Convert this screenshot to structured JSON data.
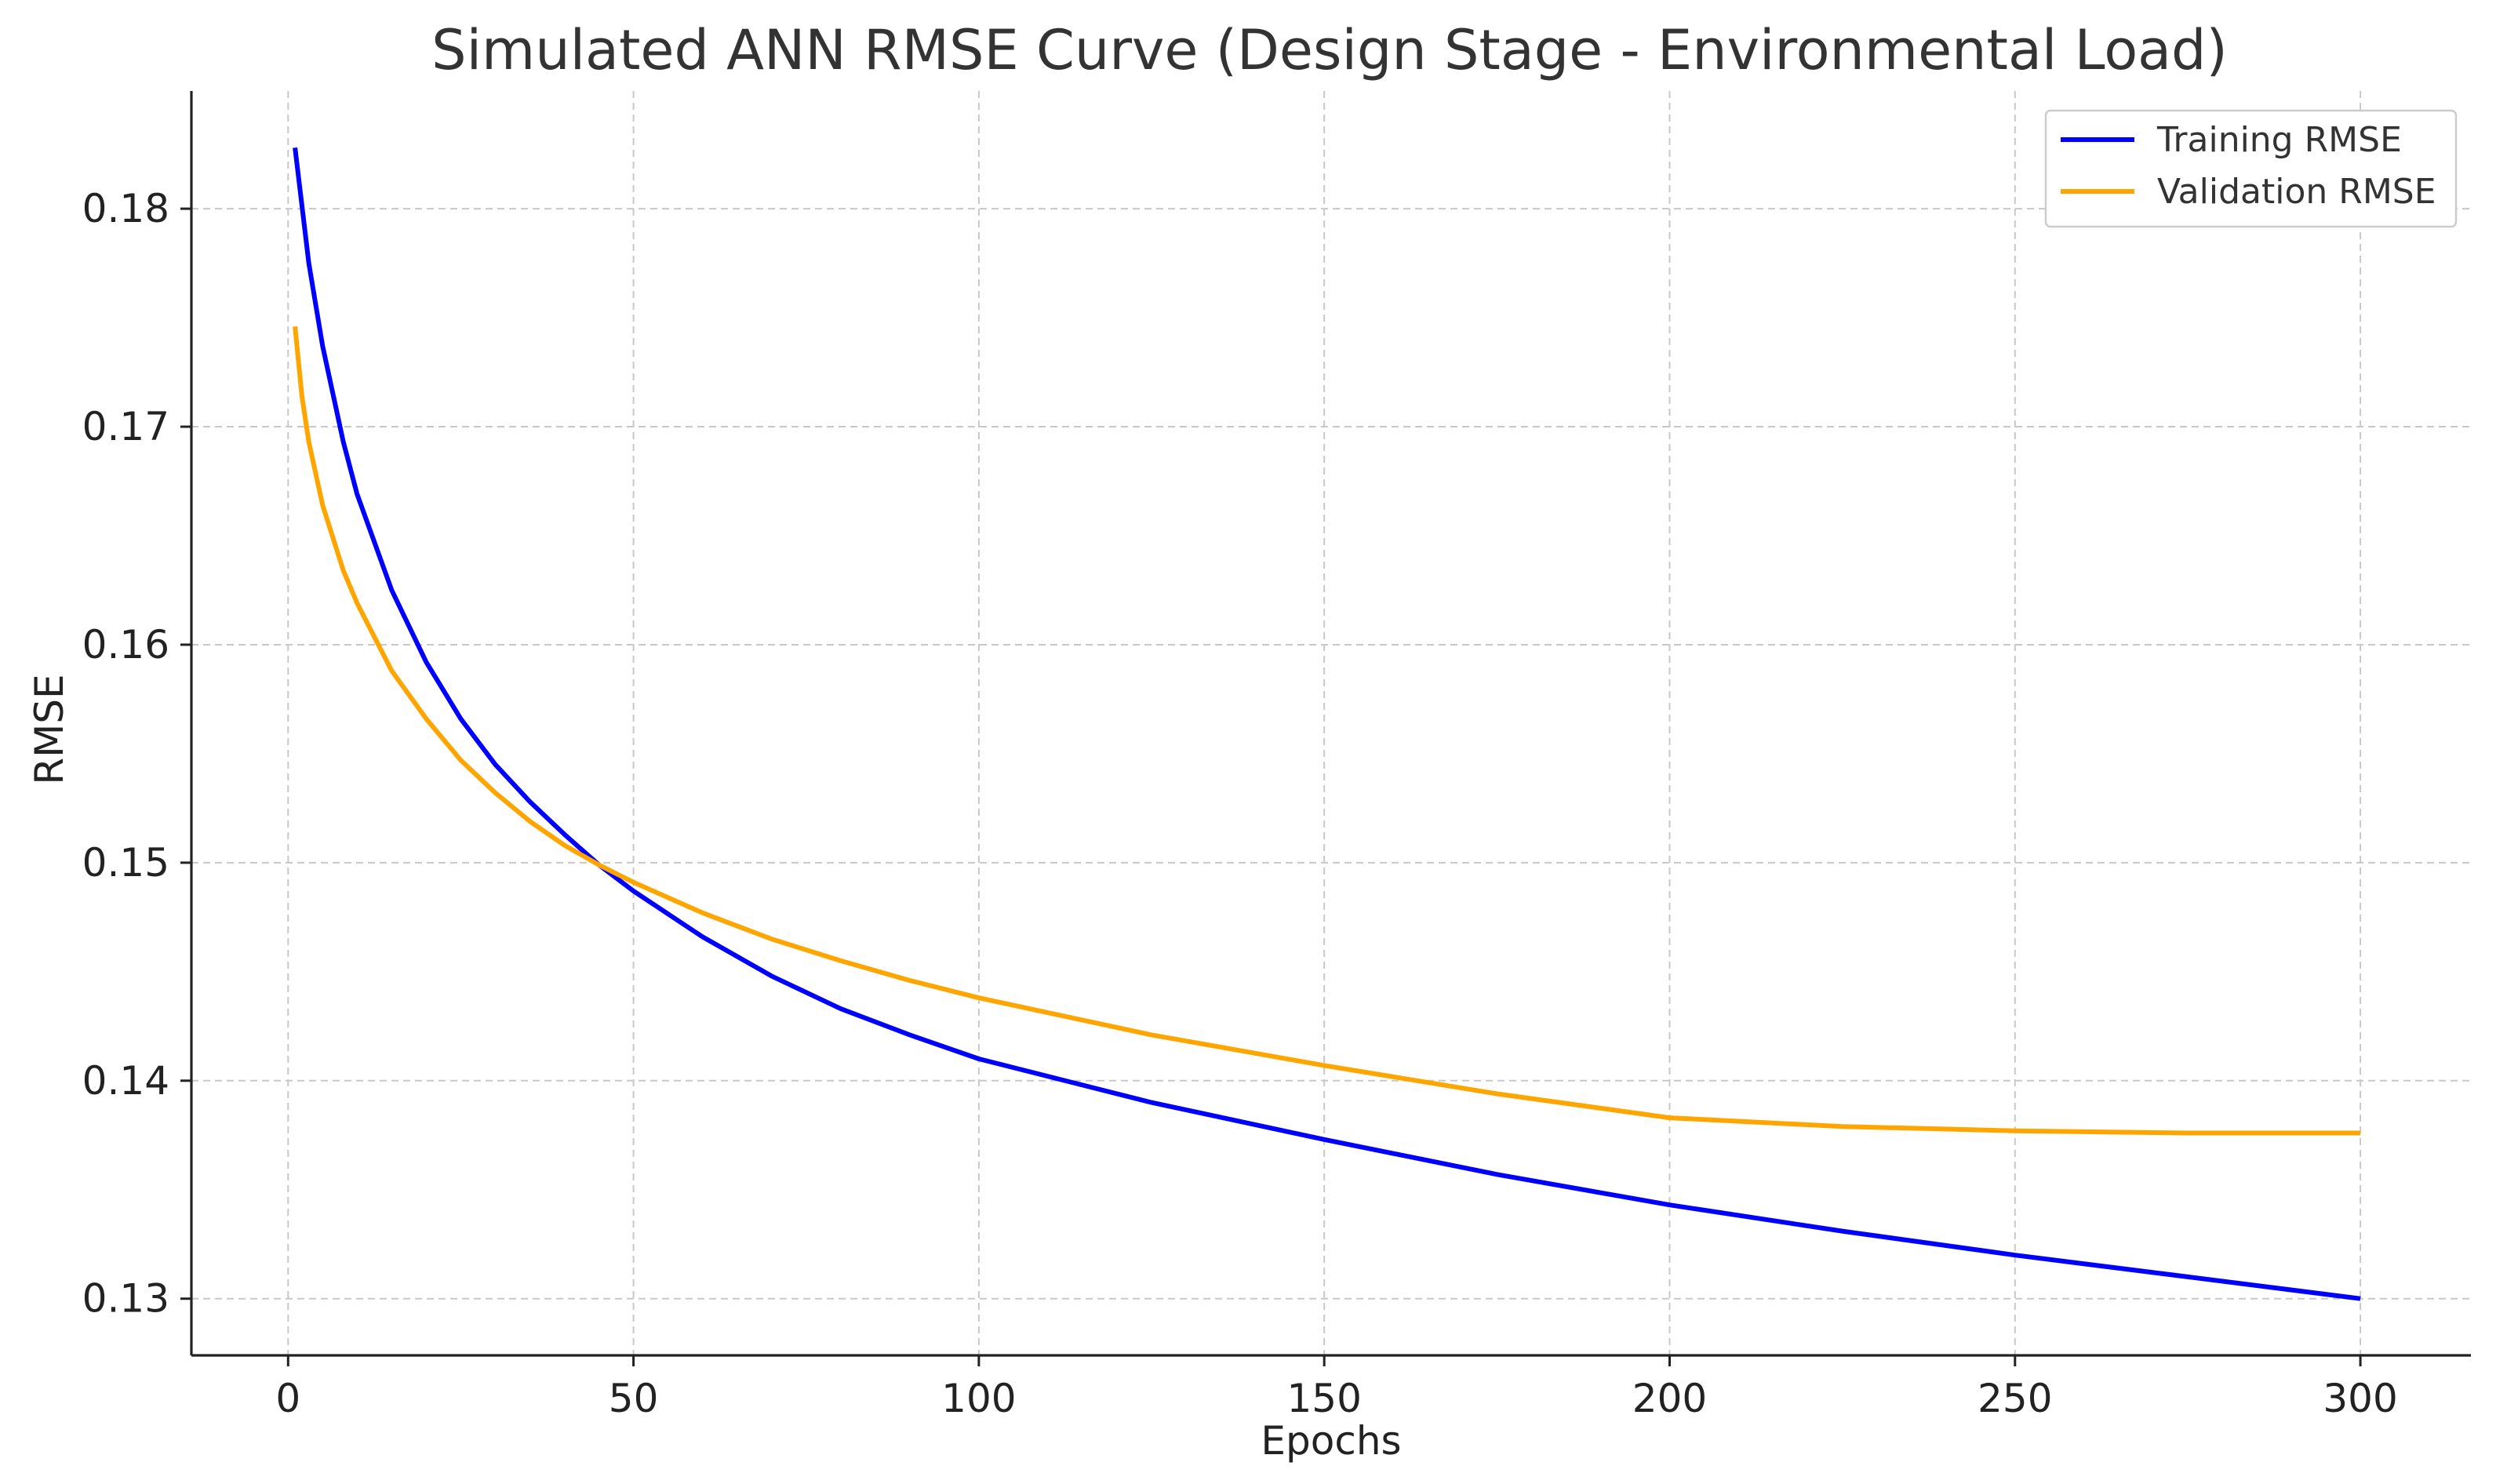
{
  "chart_data": {
    "type": "line",
    "title": "Simulated ANN RMSE Curve (Design Stage - Environmental Load)",
    "xlabel": "Epochs",
    "ylabel": "RMSE",
    "xlim": [
      -14,
      316
    ],
    "ylim": [
      0.1274,
      0.1854
    ],
    "xticks": [
      0,
      50,
      100,
      150,
      200,
      250,
      300
    ],
    "yticks": [
      0.13,
      0.14,
      0.15,
      0.16,
      0.17,
      0.18
    ],
    "ytick_labels": [
      "0.13",
      "0.14",
      "0.15",
      "0.16",
      "0.17",
      "0.18"
    ],
    "grid": true,
    "legend_position": "top-right",
    "colors": {
      "training": "#0000ff",
      "validation": "#ffa500",
      "grid": "#c8c8c8",
      "axis": "#222222"
    },
    "series": [
      {
        "name": "Training RMSE",
        "color": "#0000ff",
        "x": [
          1,
          3,
          5,
          8,
          10,
          15,
          20,
          25,
          30,
          35,
          40,
          45,
          50,
          60,
          70,
          80,
          90,
          100,
          125,
          150,
          175,
          200,
          225,
          250,
          275,
          300
        ],
        "y": [
          0.1828,
          0.1775,
          0.1737,
          0.1693,
          0.1669,
          0.1625,
          0.1592,
          0.1566,
          0.1545,
          0.1528,
          0.1513,
          0.1499,
          0.1487,
          0.1466,
          0.1448,
          0.1433,
          0.1421,
          0.141,
          0.139,
          0.1373,
          0.1357,
          0.1343,
          0.1331,
          0.132,
          0.131,
          0.13
        ]
      },
      {
        "name": "Validation RMSE",
        "color": "#ffa500",
        "x": [
          1,
          2,
          3,
          5,
          8,
          10,
          15,
          20,
          25,
          30,
          35,
          40,
          45,
          50,
          60,
          70,
          80,
          90,
          100,
          125,
          150,
          175,
          200,
          225,
          250,
          275,
          300
        ],
        "y": [
          0.1746,
          0.1714,
          0.1693,
          0.1664,
          0.1634,
          0.1619,
          0.1588,
          0.1566,
          0.1547,
          0.1532,
          0.1519,
          0.1508,
          0.1499,
          0.1491,
          0.1477,
          0.1465,
          0.1455,
          0.1446,
          0.1438,
          0.1421,
          0.1407,
          0.1394,
          0.1383,
          0.1379,
          0.1377,
          0.1376,
          0.1376
        ]
      }
    ]
  }
}
